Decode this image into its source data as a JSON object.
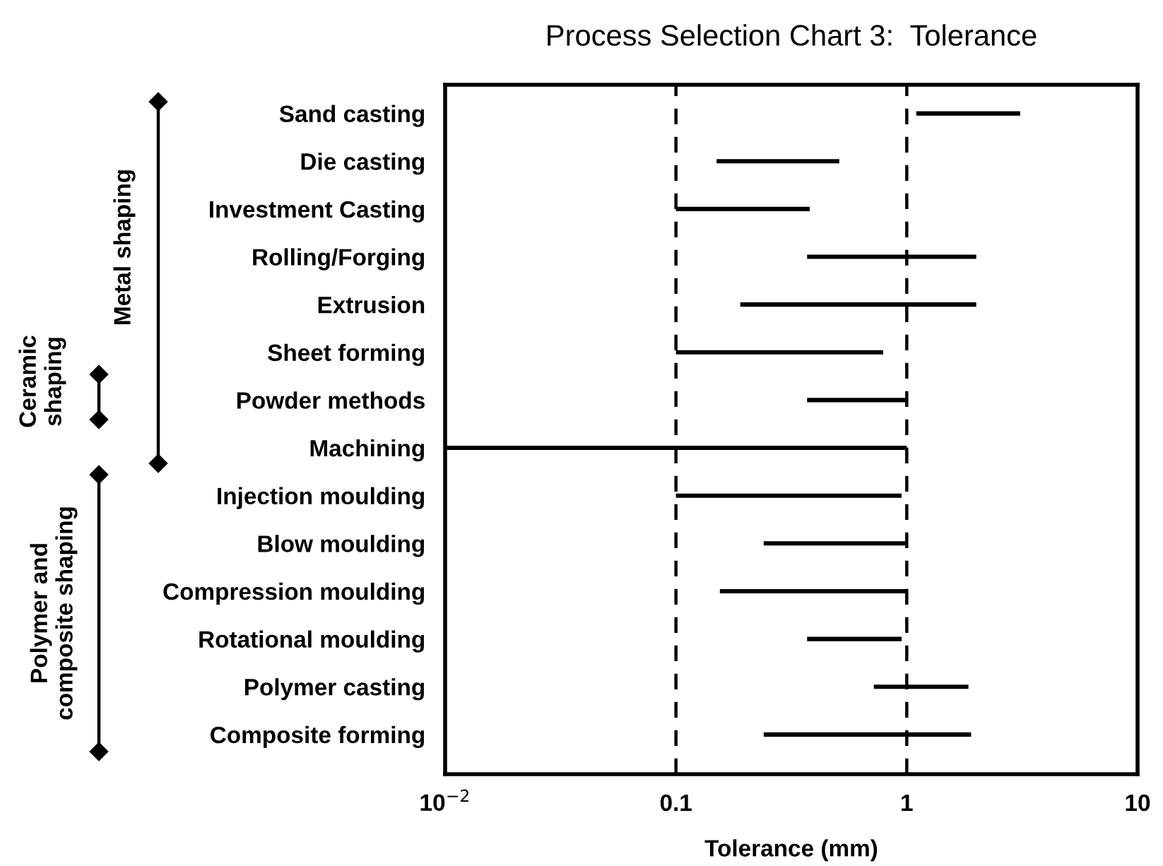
{
  "chart_data": {
    "type": "bar",
    "orientation": "horizontal",
    "title": "Process Selection Chart 3:  Tolerance",
    "xlabel": "Tolerance (mm)",
    "categories": [
      "Sand casting",
      "Die casting",
      "Investment Casting",
      "Rolling/Forging",
      "Extrusion",
      "Sheet forming",
      "Powder methods",
      "Machining",
      "Injection moulding",
      "Blow moulding",
      "Compression moulding",
      "Rotational moulding",
      "Polymer casting",
      "Composite forming"
    ],
    "base": [
      1.1,
      0.15,
      0.1,
      0.37,
      0.19,
      0.1,
      0.37,
      0.01,
      0.1,
      0.24,
      0.155,
      0.37,
      0.72,
      0.24
    ],
    "values": [
      2.0,
      0.36,
      0.28,
      1.63,
      1.81,
      0.69,
      0.63,
      0.99,
      0.85,
      0.76,
      0.845,
      0.58,
      1.13,
      1.66
    ],
    "color": "#000000",
    "log": "x",
    "xlim": [
      0.01,
      10
    ],
    "xticks": [
      {
        "value": 0.01,
        "label": "10$^{−2}$"
      },
      0.1,
      1,
      10
    ],
    "grid": false,
    "ref_lines": [
      {
        "axis": "x",
        "value": 0.1,
        "line_style": "dashed",
        "color": "#000000"
      },
      {
        "axis": "x",
        "value": 1,
        "line_style": "dashed",
        "color": "#000000"
      }
    ],
    "annotations": [
      "Metal shaping",
      "Ceramic\nshaping",
      "Polymer and\ncomposite shaping"
    ]
  }
}
